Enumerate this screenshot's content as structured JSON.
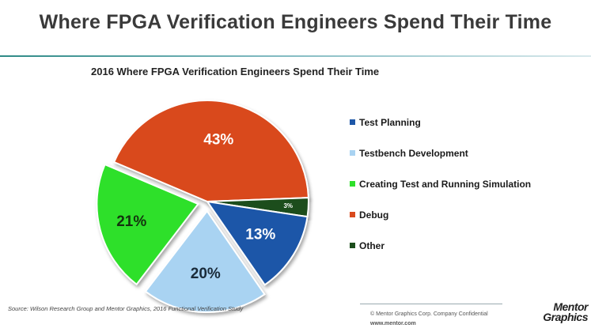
{
  "slide": {
    "title": "Where FPGA Verification Engineers Spend Their Time"
  },
  "chart_data": {
    "type": "pie",
    "title": "2016 Where FPGA Verification Engineers Spend Their Time",
    "legend_position": "right",
    "slices": [
      {
        "name": "Debug",
        "value": 43,
        "label": "43%",
        "color": "#d94a1e",
        "exploded": false
      },
      {
        "name": "Other",
        "value": 3,
        "label": "3%",
        "color": "#1b4d1b",
        "exploded": false
      },
      {
        "name": "Test Planning",
        "value": 13,
        "label": "13%",
        "color": "#1d57a8",
        "exploded": false
      },
      {
        "name": "Testbench Development",
        "value": 20,
        "label": "20%",
        "color": "#a9d3f2",
        "exploded": true
      },
      {
        "name": "Creating Test and Running Simulation",
        "value": 21,
        "label": "21%",
        "color": "#2ee02b",
        "exploded": true
      }
    ],
    "legend": [
      {
        "name": "Test Planning",
        "color": "#1d57a8"
      },
      {
        "name": "Testbench Development",
        "color": "#a9d3f2"
      },
      {
        "name": "Creating Test and Running Simulation",
        "color": "#2ee02b"
      },
      {
        "name": "Debug",
        "color": "#d94a1e"
      },
      {
        "name": "Other",
        "color": "#1b4d1b"
      }
    ]
  },
  "footer": {
    "source": "Source:   Wilson Research Group and Mentor Graphics, 2016 Functional Verification Study",
    "copyright": "© Mentor Graphics Corp.     Company Confidential",
    "url": "www.mentor.com",
    "logo_line1": "Mentor",
    "logo_line2": "Graphics"
  }
}
